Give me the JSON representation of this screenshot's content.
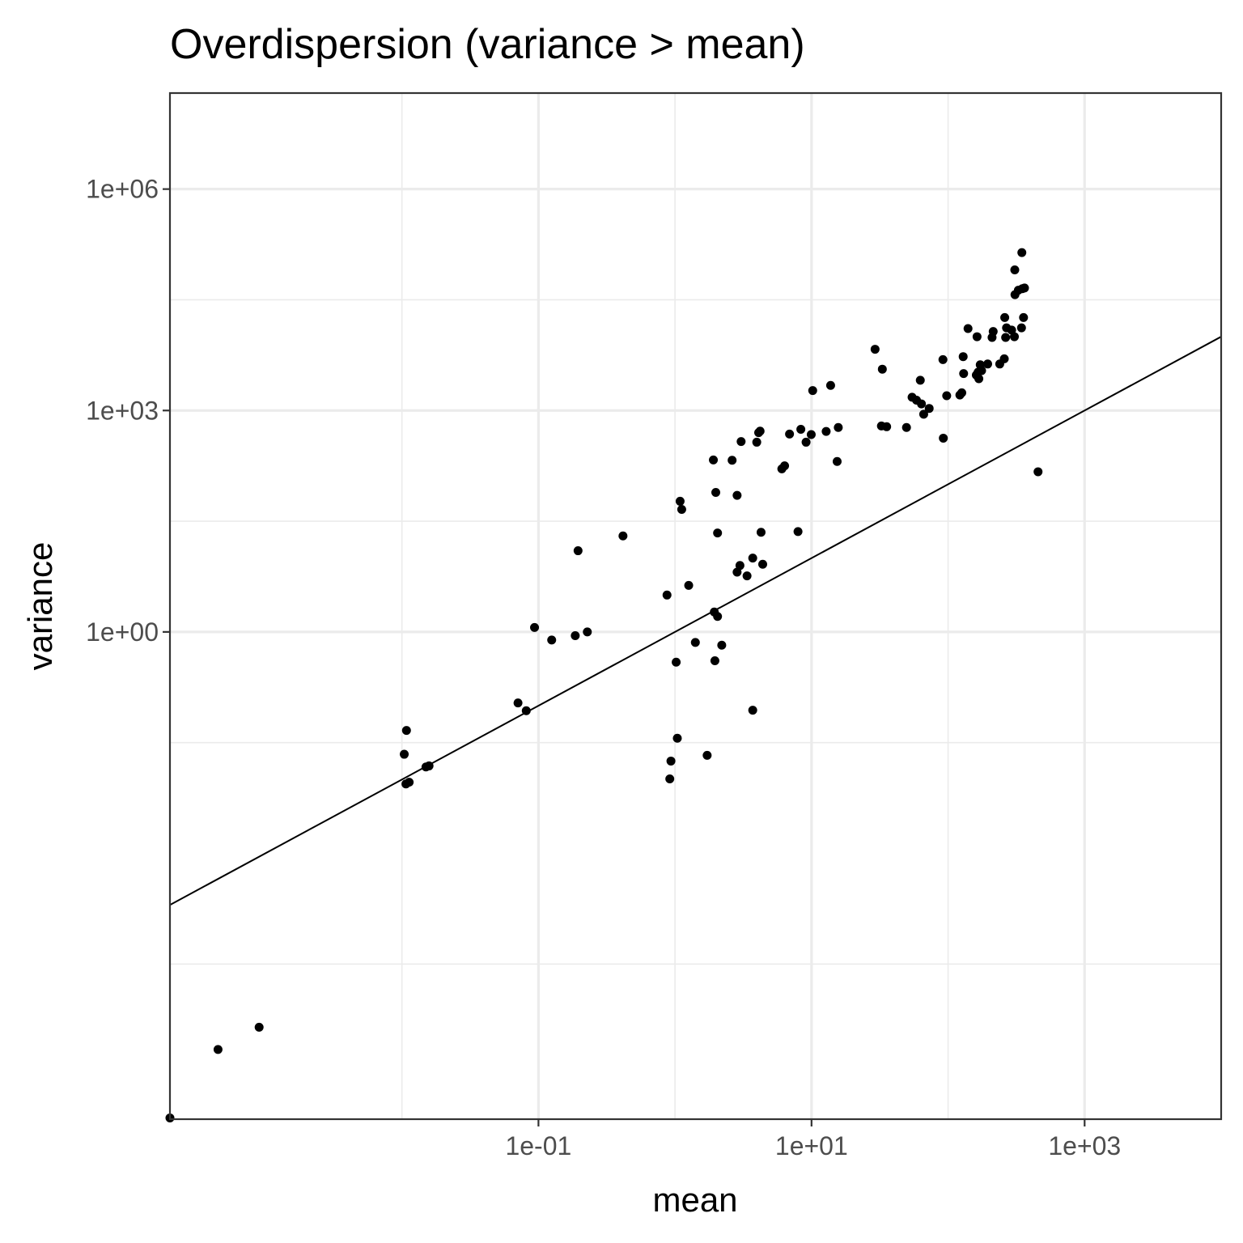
{
  "chart_data": {
    "type": "scatter",
    "title": "Overdispersion (variance > mean)",
    "xlabel": "mean",
    "ylabel": "variance",
    "x_scale": "log10",
    "y_scale": "log10",
    "xlim": [
      0.0002,
      10000
    ],
    "ylim": [
      2.5e-07,
      20000000
    ],
    "x_ticks": [
      {
        "value": 0.1,
        "label": "1e-01"
      },
      {
        "value": 10,
        "label": "1e+01"
      },
      {
        "value": 1000,
        "label": "1e+03"
      }
    ],
    "y_ticks": [
      {
        "value": 1,
        "label": "1e+00"
      },
      {
        "value": 1000,
        "label": "1e+03"
      },
      {
        "value": 1000000,
        "label": "1e+06"
      }
    ],
    "grid": true,
    "reference_line": {
      "slope": 1,
      "intercept": 0,
      "label": ""
    },
    "colors": {
      "point": "#000000",
      "line": "#000000",
      "grid": "#ebebeb",
      "border": "#333333"
    },
    "points": [
      [
        0.0002,
        2.6e-07
      ],
      [
        0.00045,
        2.2e-06
      ],
      [
        0.0009,
        4.4e-06
      ],
      [
        0.0104,
        0.022
      ],
      [
        0.0108,
        0.0462
      ],
      [
        0.0107,
        0.0087
      ],
      [
        0.0113,
        0.0092
      ],
      [
        0.015,
        0.0148
      ],
      [
        0.0158,
        0.0153
      ],
      [
        0.0708,
        0.109
      ],
      [
        0.0814,
        0.0855
      ],
      [
        0.0936,
        1.148
      ],
      [
        0.125,
        0.776
      ],
      [
        0.186,
        0.889
      ],
      [
        0.195,
        12.59
      ],
      [
        0.228,
        1.0
      ],
      [
        0.416,
        20.0
      ],
      [
        0.874,
        3.16
      ],
      [
        0.916,
        0.0102
      ],
      [
        0.934,
        0.0178
      ],
      [
        1.02,
        0.389
      ],
      [
        1.04,
        0.0363
      ],
      [
        1.09,
        58.9
      ],
      [
        1.12,
        45.7
      ],
      [
        1.26,
        4.27
      ],
      [
        1.41,
        0.72
      ],
      [
        1.72,
        0.0213
      ],
      [
        1.91,
        214
      ],
      [
        1.94,
        1.86
      ],
      [
        1.96,
        0.407
      ],
      [
        1.99,
        77.6
      ],
      [
        2.05,
        1.62
      ],
      [
        2.05,
        21.9
      ],
      [
        2.2,
        0.661
      ],
      [
        2.62,
        212
      ],
      [
        2.85,
        70.8
      ],
      [
        2.85,
        6.46
      ],
      [
        2.99,
        7.94
      ],
      [
        3.05,
        380
      ],
      [
        3.37,
        5.75
      ],
      [
        3.71,
        0.087
      ],
      [
        3.71,
        10.0
      ],
      [
        3.97,
        372
      ],
      [
        4.1,
        501
      ],
      [
        4.2,
        525
      ],
      [
        4.27,
        22.4
      ],
      [
        4.39,
        8.26
      ],
      [
        6.06,
        162
      ],
      [
        6.35,
        178
      ],
      [
        6.9,
        479
      ],
      [
        7.96,
        22.9
      ],
      [
        8.35,
        556
      ],
      [
        9.12,
        372
      ],
      [
        9.95,
        472
      ],
      [
        10.2,
        1862
      ],
      [
        12.8,
        521
      ],
      [
        13.8,
        2188
      ],
      [
        15.4,
        204
      ],
      [
        15.7,
        589
      ],
      [
        29.2,
        6761
      ],
      [
        32.5,
        617
      ],
      [
        33.0,
        3631
      ],
      [
        35.5,
        603
      ],
      [
        49.6,
        589
      ],
      [
        54.5,
        1514
      ],
      [
        58.7,
        1380
      ],
      [
        62.6,
        2570
      ],
      [
        63.8,
        1230
      ],
      [
        66.3,
        891
      ],
      [
        72.7,
        1067
      ],
      [
        91.7,
        4898
      ],
      [
        92.3,
        422
      ],
      [
        97.7,
        1585
      ],
      [
        122,
        1622
      ],
      [
        126,
        1738
      ],
      [
        129,
        5370
      ],
      [
        130,
        3162
      ],
      [
        140,
        12882
      ],
      [
        161,
        3020
      ],
      [
        163,
        10000
      ],
      [
        166,
        3311
      ],
      [
        168,
        2692
      ],
      [
        172,
        4168
      ],
      [
        176,
        3467
      ],
      [
        195,
        4266
      ],
      [
        210,
        9772
      ],
      [
        214,
        11749
      ],
      [
        239,
        4266
      ],
      [
        258,
        5012
      ],
      [
        260,
        18197
      ],
      [
        264,
        9772
      ],
      [
        268,
        13183
      ],
      [
        292,
        12303
      ],
      [
        306,
        10000
      ],
      [
        309,
        37154
      ],
      [
        308,
        80353
      ],
      [
        327,
        42658
      ],
      [
        345,
        13183
      ],
      [
        347,
        138038
      ],
      [
        350,
        44668
      ],
      [
        357,
        18197
      ],
      [
        363,
        45709
      ],
      [
        456,
        148
      ]
    ]
  }
}
